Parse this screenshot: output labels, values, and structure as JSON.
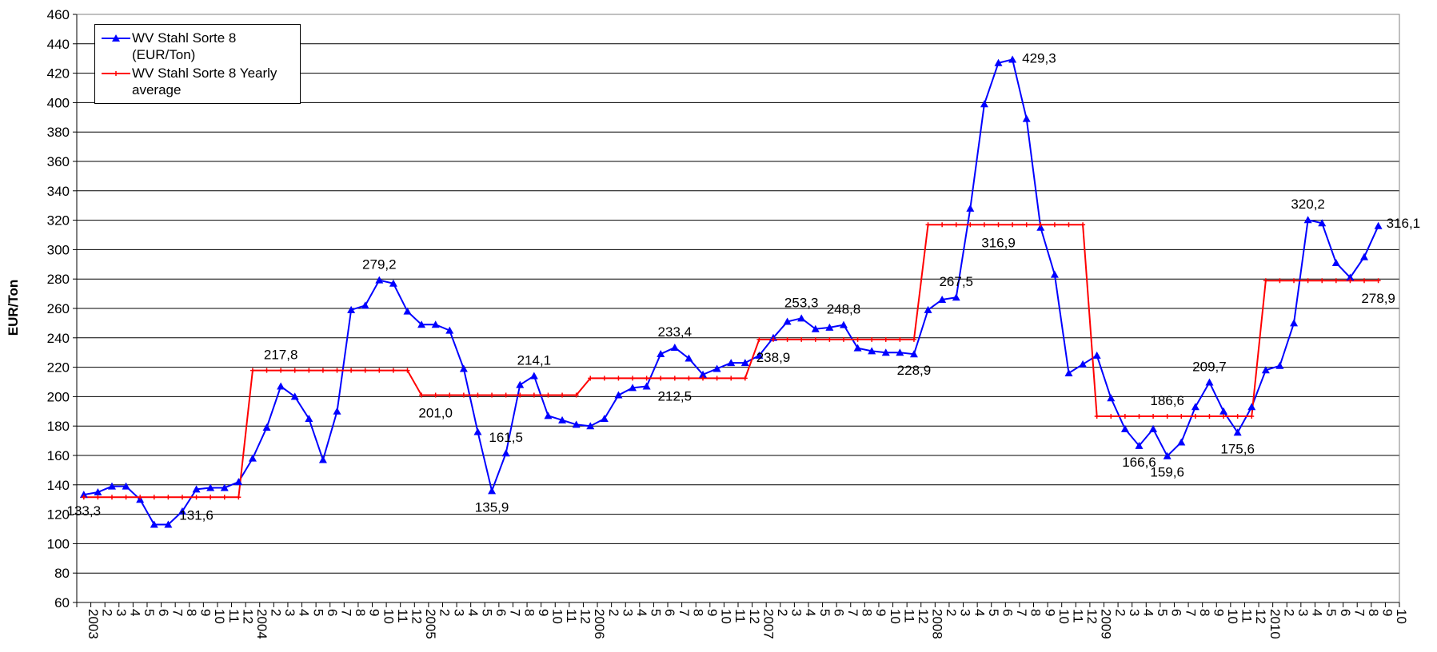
{
  "chart_data": {
    "type": "line",
    "y_label": "EUR/Ton",
    "categories": [
      "2003",
      "2",
      "3",
      "4",
      "5",
      "6",
      "7",
      "8",
      "9",
      "10",
      "11",
      "12",
      "2004",
      "2",
      "3",
      "4",
      "5",
      "6",
      "7",
      "8",
      "9",
      "10",
      "11",
      "12",
      "2005",
      "2",
      "3",
      "4",
      "5",
      "6",
      "7",
      "8",
      "9",
      "10",
      "11",
      "12",
      "2006",
      "2",
      "3",
      "4",
      "5",
      "6",
      "7",
      "8",
      "9",
      "10",
      "11",
      "12",
      "2007",
      "2",
      "3",
      "4",
      "5",
      "6",
      "7",
      "8",
      "9",
      "10",
      "11",
      "12",
      "2008",
      "2",
      "3",
      "4",
      "5",
      "6",
      "7",
      "8",
      "9",
      "10",
      "11",
      "12",
      "2009",
      "2",
      "3",
      "4",
      "5",
      "6",
      "7",
      "8",
      "9",
      "10",
      "11",
      "12",
      "2010",
      "2",
      "3",
      "4",
      "5",
      "6",
      "7",
      "8",
      "9",
      "10"
    ],
    "series": [
      {
        "name": "WV Stahl Sorte 8 (EUR/Ton)",
        "color": "#0000ff",
        "marker": "triangle",
        "values": [
          133.3,
          135,
          139,
          139,
          130,
          113,
          113,
          122,
          137,
          138,
          138,
          142,
          158,
          179,
          207,
          200,
          185,
          157,
          190,
          259,
          262,
          279.2,
          277,
          258,
          249,
          249,
          245,
          219,
          176,
          135.9,
          161.5,
          208,
          214.1,
          187,
          184,
          181,
          180,
          185,
          201,
          206,
          207,
          229,
          233.4,
          226,
          215,
          219,
          223,
          223,
          228,
          240,
          251,
          253.3,
          246,
          247,
          248.8,
          233,
          231,
          230,
          230,
          228.9,
          259,
          266,
          267.5,
          328,
          399,
          427,
          429.3,
          389,
          315,
          283,
          216,
          222,
          228,
          199,
          178,
          166.6,
          178,
          159.6,
          169,
          193,
          209.7,
          190,
          175.6,
          193,
          218,
          221,
          250,
          320.2,
          318,
          291,
          281,
          295,
          316.1,
          null
        ],
        "value_labels": [
          "133,3",
          null,
          null,
          null,
          null,
          null,
          null,
          null,
          null,
          null,
          null,
          null,
          null,
          null,
          null,
          null,
          null,
          null,
          null,
          null,
          null,
          "279,2",
          null,
          null,
          null,
          null,
          null,
          null,
          null,
          "135,9",
          "161,5",
          null,
          "214,1",
          null,
          null,
          null,
          null,
          null,
          null,
          null,
          null,
          null,
          "233,4",
          null,
          null,
          null,
          null,
          null,
          null,
          null,
          null,
          "253,3",
          null,
          null,
          "248,8",
          null,
          null,
          null,
          null,
          "228,9",
          null,
          null,
          "267,5",
          null,
          null,
          null,
          "429,3",
          null,
          null,
          null,
          null,
          null,
          null,
          null,
          null,
          "166,6",
          null,
          "159,6",
          null,
          null,
          "209,7",
          null,
          "175,6",
          null,
          null,
          null,
          null,
          "320,2",
          null,
          null,
          null,
          null,
          "316,1",
          null
        ]
      },
      {
        "name": "WV Stahl Sorte 8 Yearly average",
        "color": "#ff0000",
        "marker": "plus",
        "values": [
          131.6,
          131.6,
          131.6,
          131.6,
          131.6,
          131.6,
          131.6,
          131.6,
          131.6,
          131.6,
          131.6,
          131.6,
          217.8,
          217.8,
          217.8,
          217.8,
          217.8,
          217.8,
          217.8,
          217.8,
          217.8,
          217.8,
          217.8,
          217.8,
          201.0,
          201.0,
          201.0,
          201.0,
          201.0,
          201.0,
          201.0,
          201.0,
          201.0,
          201.0,
          201.0,
          201.0,
          212.5,
          212.5,
          212.5,
          212.5,
          212.5,
          212.5,
          212.5,
          212.5,
          212.5,
          212.5,
          212.5,
          212.5,
          238.9,
          238.9,
          238.9,
          238.9,
          238.9,
          238.9,
          238.9,
          238.9,
          238.9,
          238.9,
          238.9,
          238.9,
          316.9,
          316.9,
          316.9,
          316.9,
          316.9,
          316.9,
          316.9,
          316.9,
          316.9,
          316.9,
          316.9,
          316.9,
          186.6,
          186.6,
          186.6,
          186.6,
          186.6,
          186.6,
          186.6,
          186.6,
          186.6,
          186.6,
          186.6,
          186.6,
          278.9,
          278.9,
          278.9,
          278.9,
          278.9,
          278.9,
          278.9,
          278.9,
          278.9,
          null
        ],
        "value_labels": [
          null,
          null,
          null,
          null,
          null,
          null,
          null,
          null,
          "131,6",
          null,
          null,
          null,
          null,
          null,
          "217,8",
          null,
          null,
          null,
          null,
          null,
          null,
          null,
          null,
          null,
          null,
          "201,0",
          null,
          null,
          null,
          null,
          null,
          null,
          null,
          null,
          null,
          null,
          null,
          null,
          null,
          null,
          null,
          null,
          "212,5",
          null,
          null,
          null,
          null,
          null,
          null,
          "238,9",
          null,
          null,
          null,
          null,
          null,
          null,
          null,
          null,
          null,
          null,
          null,
          null,
          null,
          null,
          null,
          "316,9",
          null,
          null,
          null,
          null,
          null,
          null,
          null,
          null,
          null,
          null,
          null,
          "186,6",
          null,
          null,
          null,
          null,
          null,
          null,
          null,
          null,
          null,
          null,
          null,
          null,
          null,
          null,
          "278,9",
          null
        ]
      }
    ],
    "ylim": [
      60,
      460
    ],
    "yticks": [
      60,
      80,
      100,
      120,
      140,
      160,
      180,
      200,
      220,
      240,
      260,
      280,
      300,
      320,
      340,
      360,
      380,
      400,
      420,
      440,
      460
    ],
    "grid": true,
    "legend": "top-left"
  }
}
